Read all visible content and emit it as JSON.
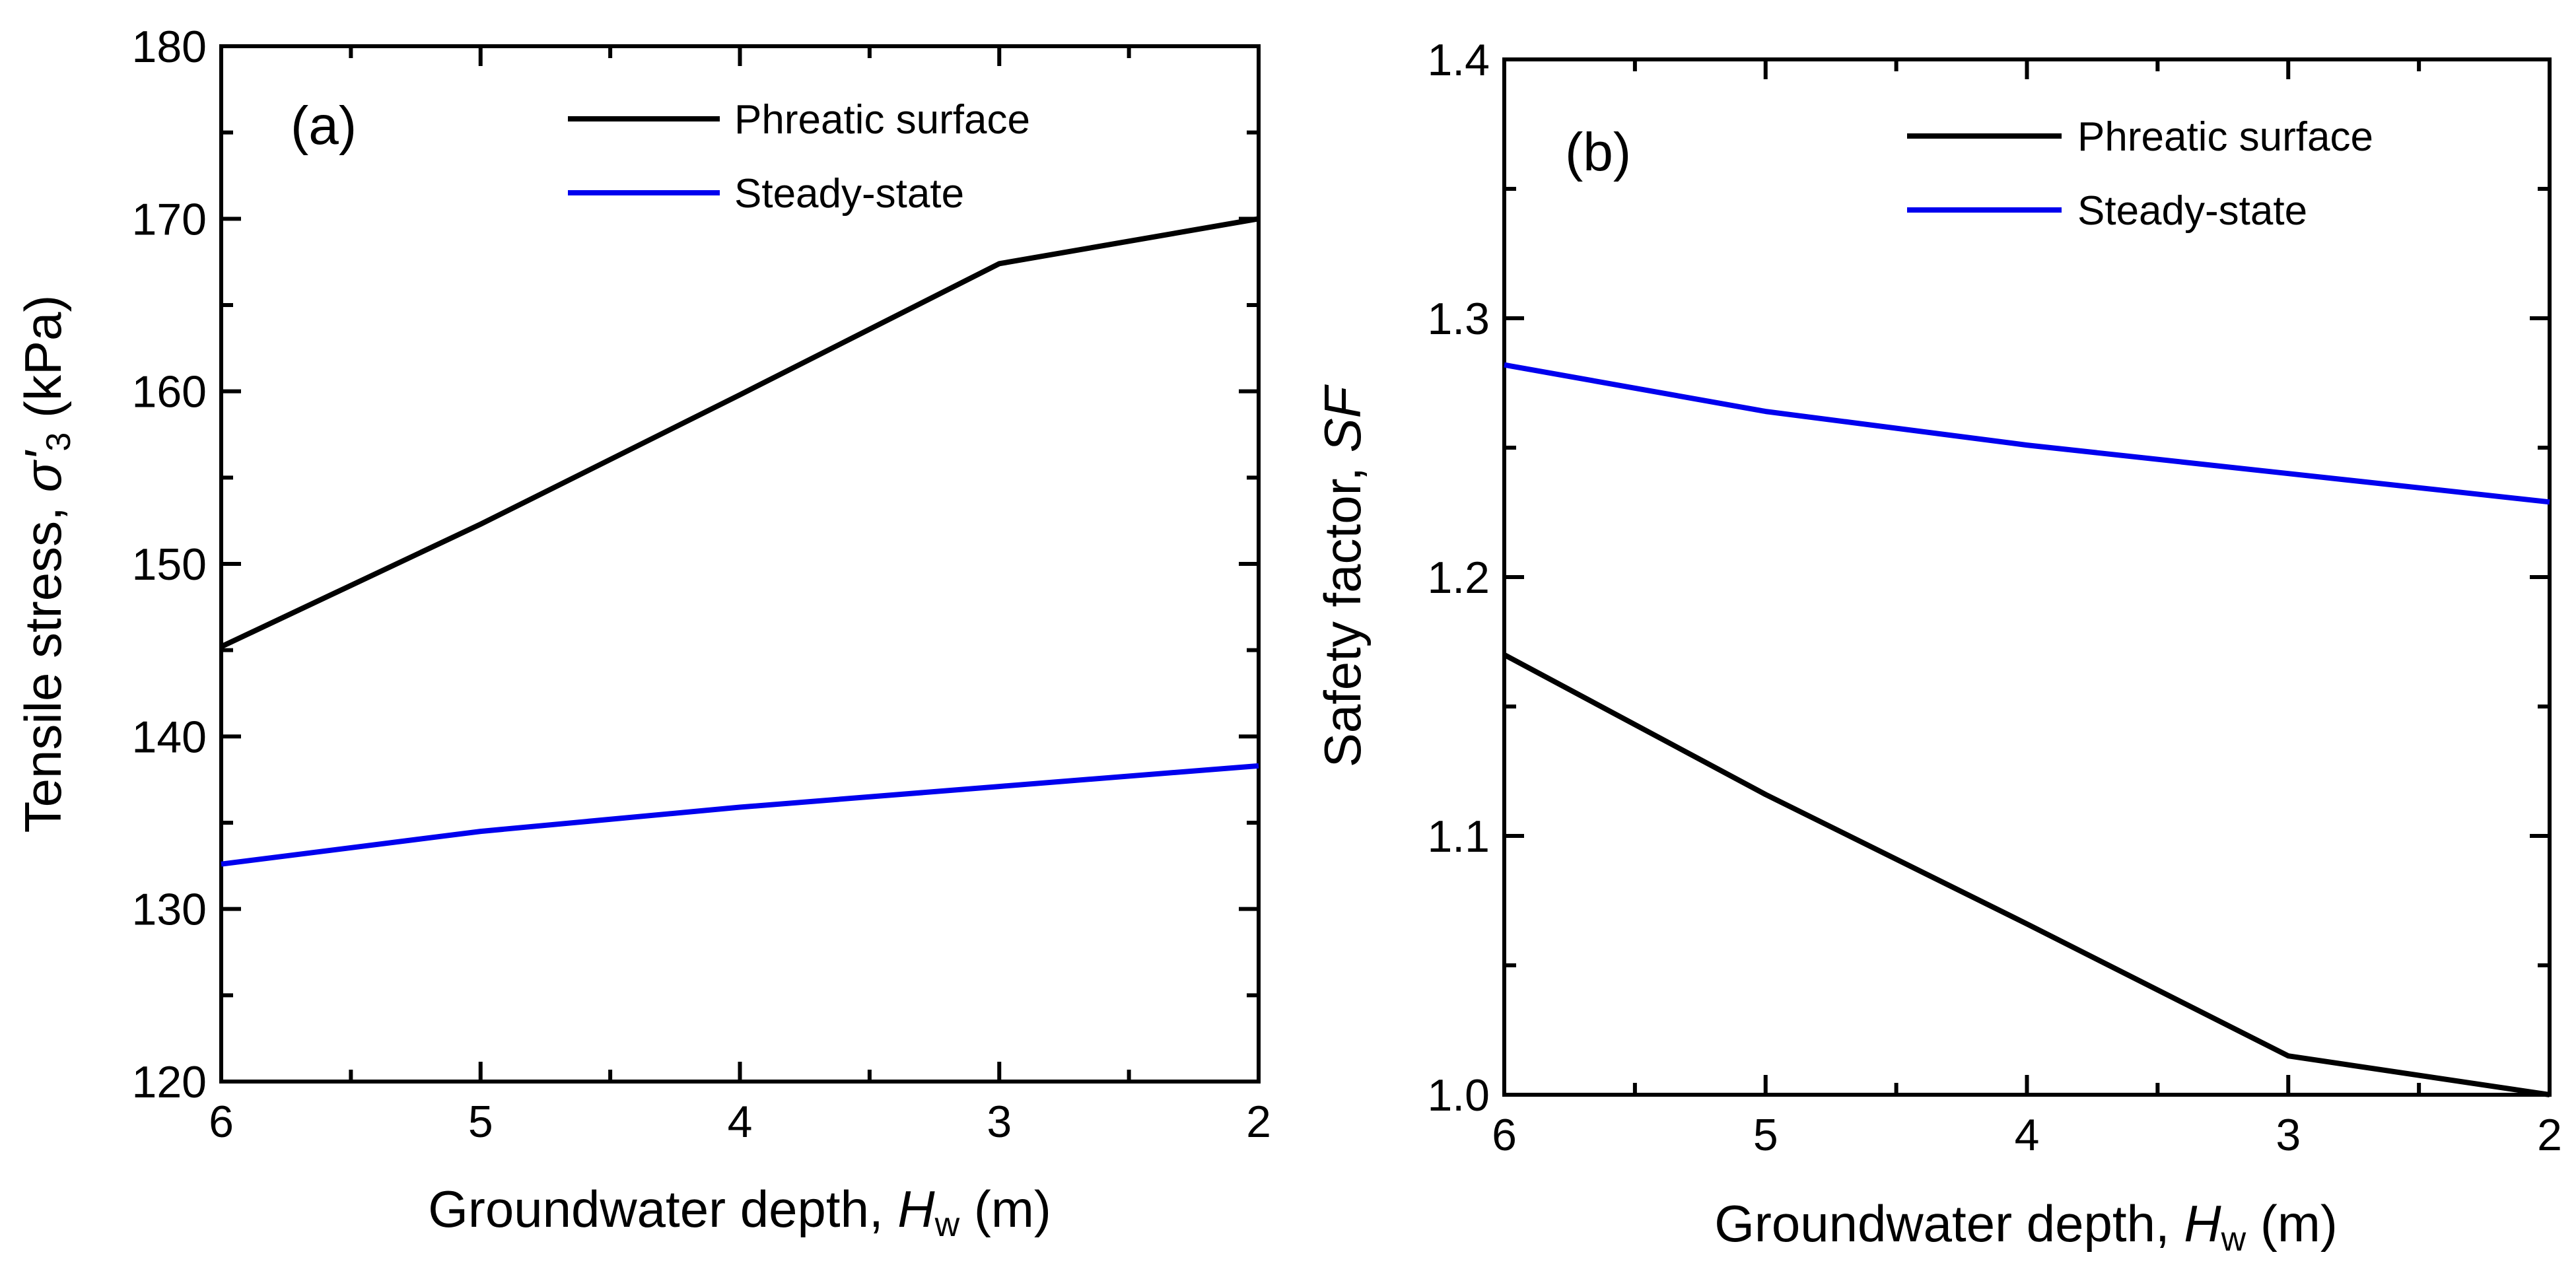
{
  "chart_data": [
    {
      "panel_label": "(a)",
      "type": "line",
      "xlabel": {
        "prefix": "Groundwater depth, ",
        "symbol": "H",
        "subscript": "w",
        "suffix": " (m)"
      },
      "ylabel": {
        "prefix": "Tensile stress, ",
        "symbol": "σ'",
        "subscript": "3",
        "suffix": " (kPa)"
      },
      "xlim": [
        6,
        2
      ],
      "ylim": [
        120,
        180
      ],
      "xticks": [
        6,
        5,
        4,
        3,
        2
      ],
      "xtick_labels": [
        "6",
        "5",
        "4",
        "3",
        "2"
      ],
      "yticks": [
        120,
        130,
        140,
        150,
        160,
        170,
        180
      ],
      "ytick_labels": [
        "120",
        "130",
        "140",
        "150",
        "160",
        "170",
        "180"
      ],
      "x_minor_step": 0.5,
      "y_minor_step": 5,
      "legend_position": "top-right",
      "series": [
        {
          "name": "Phreatic surface",
          "color": "#000000",
          "x": [
            6,
            5,
            4,
            3,
            2
          ],
          "y": [
            145.2,
            152.3,
            159.8,
            167.4,
            170.0
          ]
        },
        {
          "name": "Steady-state",
          "color": "#0000ee",
          "x": [
            6,
            5,
            4,
            3,
            2
          ],
          "y": [
            132.6,
            134.5,
            135.9,
            137.1,
            138.3
          ]
        }
      ]
    },
    {
      "panel_label": "(b)",
      "type": "line",
      "xlabel": {
        "prefix": "Groundwater depth, ",
        "symbol": "H",
        "subscript": "w",
        "suffix": " (m)"
      },
      "ylabel": {
        "prefix": "Safety factor, ",
        "symbol": "SF",
        "subscript": "",
        "suffix": ""
      },
      "xlim": [
        6,
        2
      ],
      "ylim": [
        1.0,
        1.4
      ],
      "xticks": [
        6,
        5,
        4,
        3,
        2
      ],
      "xtick_labels": [
        "6",
        "5",
        "4",
        "3",
        "2"
      ],
      "yticks": [
        1.0,
        1.1,
        1.2,
        1.3,
        1.4
      ],
      "ytick_labels": [
        "1.0",
        "1.1",
        "1.2",
        "1.3",
        "1.4"
      ],
      "x_minor_step": 0.5,
      "y_minor_step": 0.05,
      "legend_position": "top-right",
      "series": [
        {
          "name": "Phreatic surface",
          "color": "#000000",
          "x": [
            6,
            5,
            4,
            3,
            2
          ],
          "y": [
            1.17,
            1.116,
            1.066,
            1.015,
            1.0
          ]
        },
        {
          "name": "Steady-state",
          "color": "#0000ee",
          "x": [
            6,
            5,
            4,
            3,
            2
          ],
          "y": [
            1.282,
            1.264,
            1.251,
            1.24,
            1.229
          ]
        }
      ]
    }
  ]
}
